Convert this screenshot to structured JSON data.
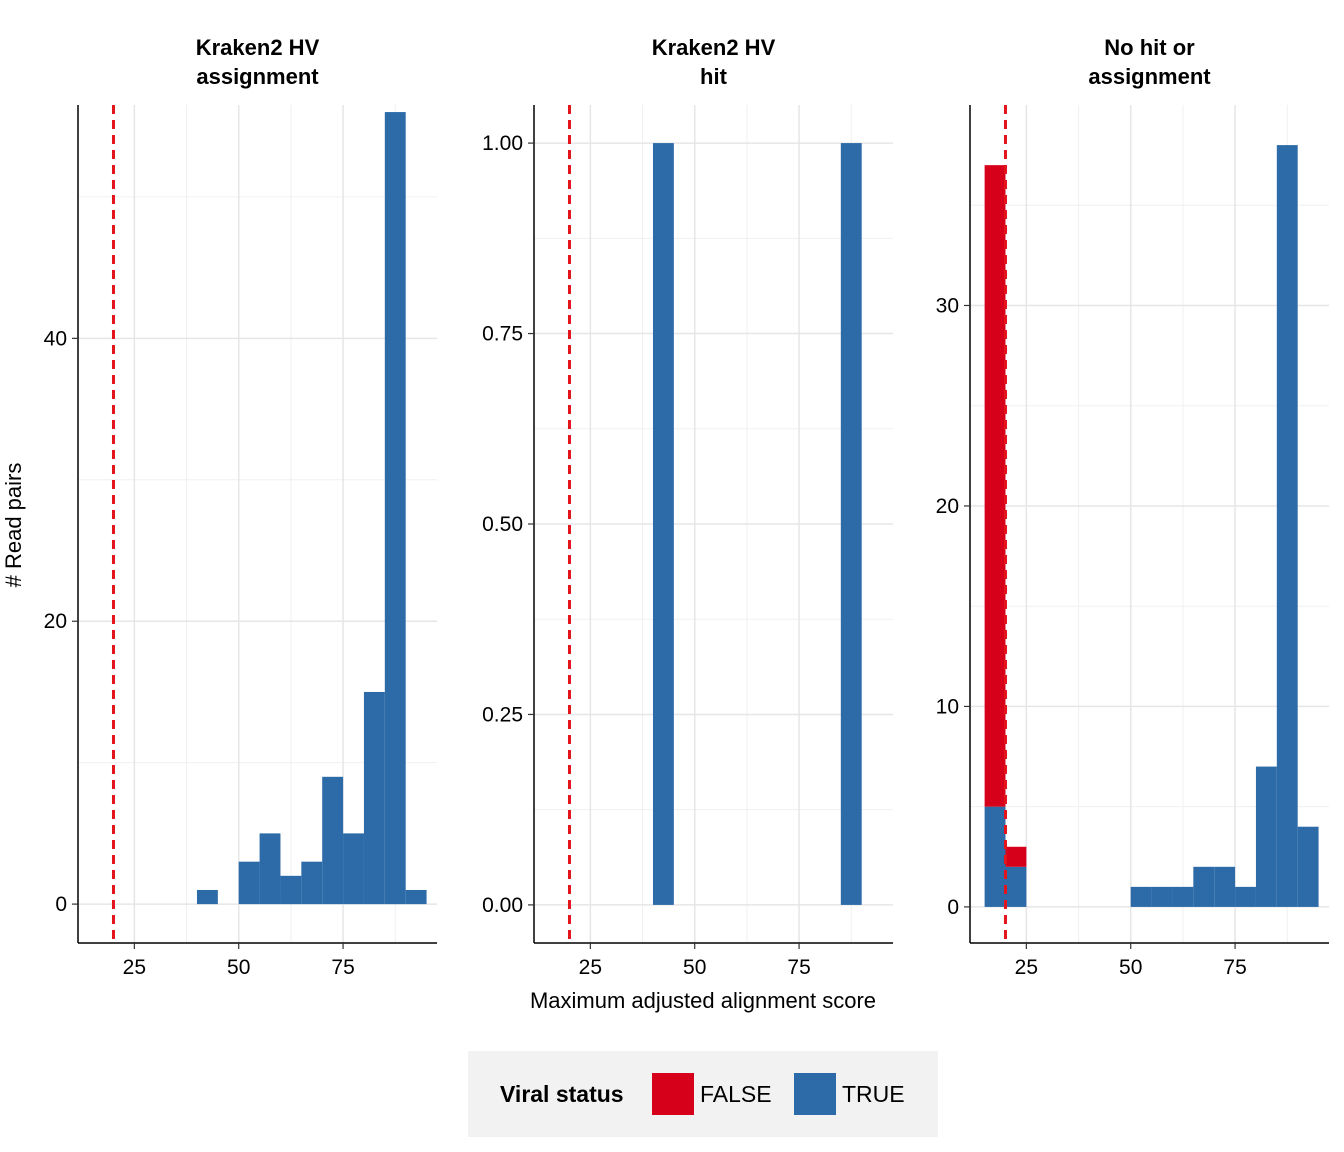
{
  "chart_data": {
    "type": "bar",
    "ylabel": "# Read pairs",
    "xlabel": "Maximum adjusted alignment score",
    "threshold_line": {
      "x": 20,
      "color": "#e3141c",
      "style": "dashed"
    },
    "colors": {
      "FALSE": "#d7001b",
      "TRUE": "#2c6aa8"
    },
    "panels": [
      {
        "title_line1": "Kraken2 HV",
        "title_line2": "assignment",
        "xlim": [
          11.5,
          97.5
        ],
        "ylim": [
          -2.75,
          56.5
        ],
        "x_ticks": [
          25,
          50,
          75
        ],
        "y_ticks": [
          0,
          20,
          40
        ],
        "y_tick_labels": [
          "0",
          "20",
          "40"
        ],
        "bins": [
          {
            "x0": 40,
            "x1": 45,
            "TRUE": 1,
            "FALSE": 0
          },
          {
            "x0": 50,
            "x1": 55,
            "TRUE": 3,
            "FALSE": 0
          },
          {
            "x0": 55,
            "x1": 60,
            "TRUE": 5,
            "FALSE": 0
          },
          {
            "x0": 60,
            "x1": 65,
            "TRUE": 2,
            "FALSE": 0
          },
          {
            "x0": 65,
            "x1": 70,
            "TRUE": 3,
            "FALSE": 0
          },
          {
            "x0": 70,
            "x1": 75,
            "TRUE": 9,
            "FALSE": 0
          },
          {
            "x0": 75,
            "x1": 80,
            "TRUE": 5,
            "FALSE": 0
          },
          {
            "x0": 80,
            "x1": 85,
            "TRUE": 15,
            "FALSE": 0
          },
          {
            "x0": 85,
            "x1": 90,
            "TRUE": 56,
            "FALSE": 0
          },
          {
            "x0": 90,
            "x1": 95,
            "TRUE": 1,
            "FALSE": 0
          }
        ]
      },
      {
        "title_line1": "Kraken2 HV",
        "title_line2": "hit",
        "xlim": [
          11.5,
          97.5
        ],
        "ylim": [
          -0.05,
          1.05
        ],
        "x_ticks": [
          25,
          50,
          75
        ],
        "y_ticks": [
          0,
          0.25,
          0.5,
          0.75,
          1.0
        ],
        "y_tick_labels": [
          "0.00",
          "0.25",
          "0.50",
          "0.75",
          "1.00"
        ],
        "bins": [
          {
            "x0": 40,
            "x1": 45,
            "TRUE": 1,
            "FALSE": 0
          },
          {
            "x0": 85,
            "x1": 90,
            "TRUE": 1,
            "FALSE": 0
          }
        ]
      },
      {
        "title_line1": "No hit or",
        "title_line2": "assignment",
        "xlim": [
          11.5,
          97.5
        ],
        "ylim": [
          -1.8,
          40
        ],
        "x_ticks": [
          25,
          50,
          75
        ],
        "y_ticks": [
          0,
          10,
          20,
          30
        ],
        "y_tick_labels": [
          "0",
          "10",
          "20",
          "30"
        ],
        "bins": [
          {
            "x0": 15,
            "x1": 20,
            "TRUE": 5,
            "FALSE": 32
          },
          {
            "x0": 20,
            "x1": 25,
            "TRUE": 2,
            "FALSE": 1
          },
          {
            "x0": 50,
            "x1": 55,
            "TRUE": 1,
            "FALSE": 0
          },
          {
            "x0": 55,
            "x1": 60,
            "TRUE": 1,
            "FALSE": 0
          },
          {
            "x0": 60,
            "x1": 65,
            "TRUE": 1,
            "FALSE": 0
          },
          {
            "x0": 65,
            "x1": 70,
            "TRUE": 2,
            "FALSE": 0
          },
          {
            "x0": 70,
            "x1": 75,
            "TRUE": 2,
            "FALSE": 0
          },
          {
            "x0": 75,
            "x1": 80,
            "TRUE": 1,
            "FALSE": 0
          },
          {
            "x0": 80,
            "x1": 85,
            "TRUE": 7,
            "FALSE": 0
          },
          {
            "x0": 85,
            "x1": 90,
            "TRUE": 38,
            "FALSE": 0
          },
          {
            "x0": 90,
            "x1": 95,
            "TRUE": 4,
            "FALSE": 0
          }
        ]
      }
    ],
    "legend": {
      "title": "Viral status",
      "position": "bottom",
      "entries": [
        {
          "label": "FALSE",
          "color": "#d7001b"
        },
        {
          "label": "TRUE",
          "color": "#2c6aa8"
        }
      ]
    }
  }
}
